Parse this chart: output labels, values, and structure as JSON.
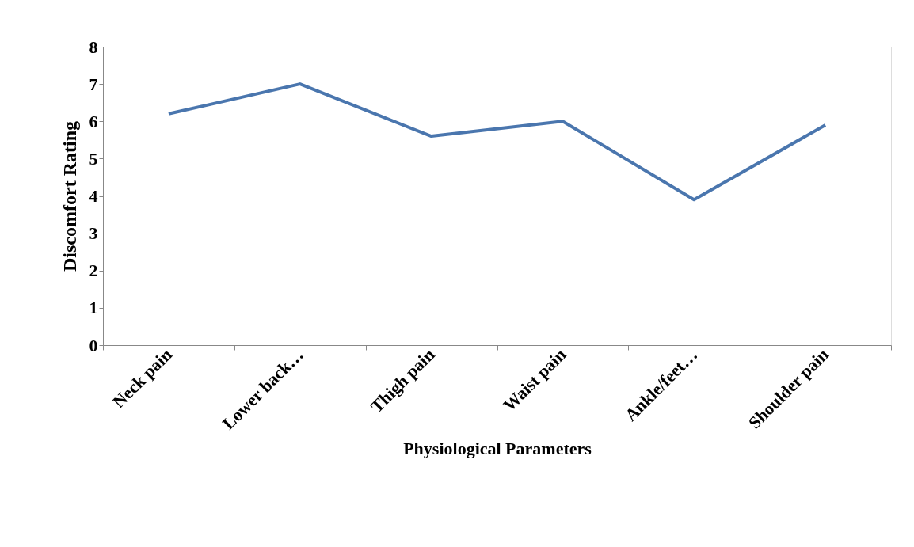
{
  "chart_data": {
    "type": "line",
    "xlabel": "Physiological Parameters",
    "ylabel": "Discomfort Rating",
    "categories": [
      "Neck pain",
      "Lower back…",
      "Thigh pain",
      "Waist pain",
      "Ankle/feet…",
      "Shoulder pain"
    ],
    "series": [
      {
        "color": "#4a76ae",
        "values": [
          6.2,
          7.0,
          5.6,
          6.0,
          3.9,
          5.9
        ]
      }
    ],
    "ylim": [
      0,
      8
    ],
    "yticks": [
      0,
      1,
      2,
      3,
      4,
      5,
      6,
      7,
      8
    ],
    "grid": false,
    "legend": false,
    "marker": "none",
    "line_style": "solid"
  }
}
